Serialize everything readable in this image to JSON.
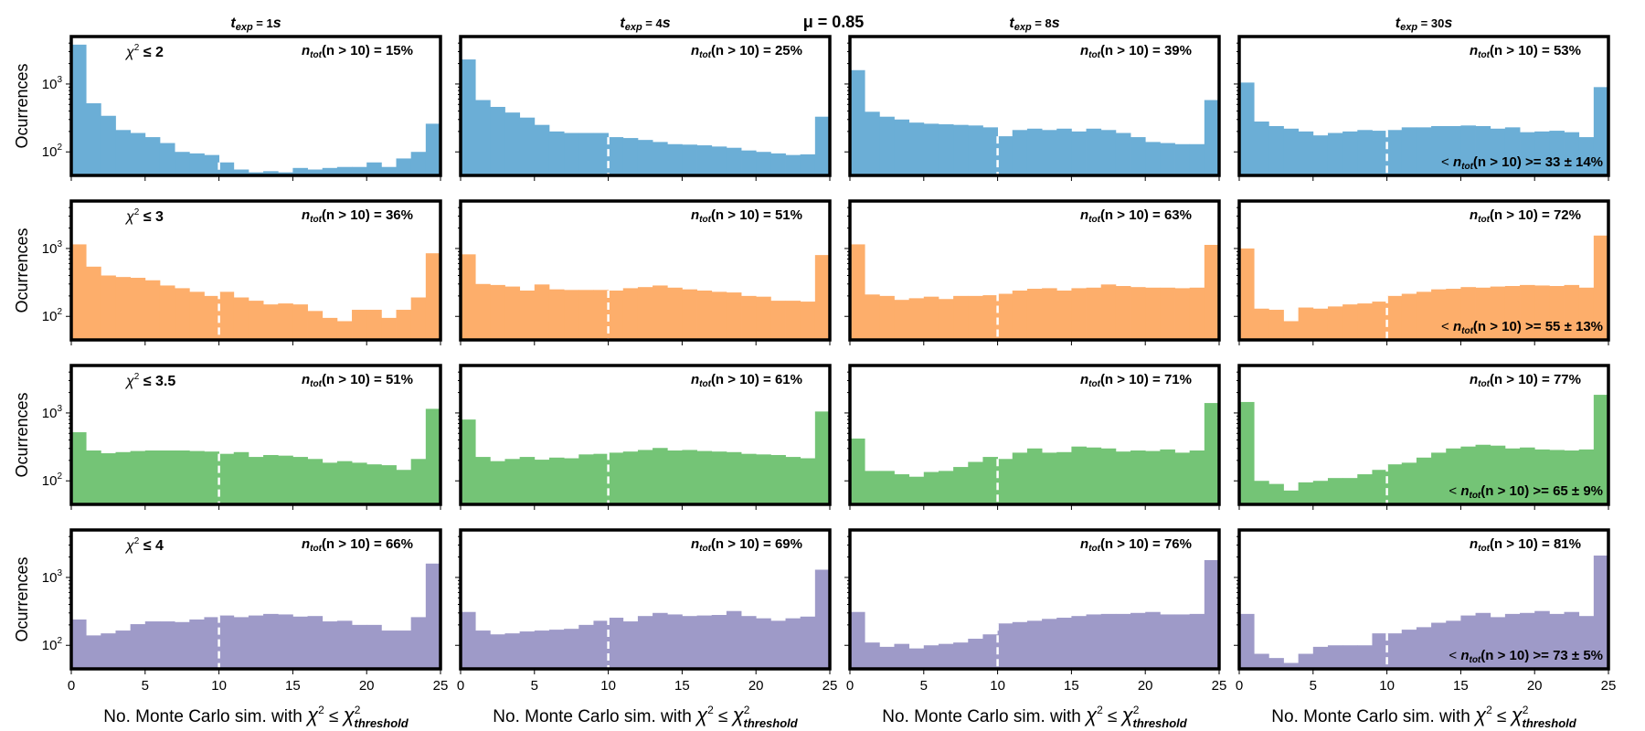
{
  "figure_title": "μ = 0.85",
  "colors": {
    "blue": "#6baed6",
    "orange": "#fdae6b",
    "green": "#74c476",
    "purple": "#9e9ac8"
  },
  "chart_data": {
    "type": "bar",
    "description": "4x4 grid of log-scale histograms",
    "xlabel": "No. Monte Carlo sim. with χ² ≤ χ²threshold",
    "xlabel_parts": {
      "main": "No. Monte Carlo sim.  with ",
      "chi": "χ",
      "sup": "2",
      "le": " ≤ ",
      "sub": "threshold"
    },
    "ylabel": "Ocurrences",
    "xlim": [
      0,
      25
    ],
    "ylim": [
      45,
      5000
    ],
    "yscale": "log",
    "xticks": [
      "0",
      "5",
      "10",
      "15",
      "20",
      "25"
    ],
    "yticks": [
      {
        "base": "10",
        "exp": "2",
        "value": 100
      },
      {
        "base": "10",
        "exp": "3",
        "value": 1000
      }
    ],
    "threshold_line_x": 10,
    "columns": [
      {
        "label": "texp = 1s",
        "base": "t",
        "sub": "exp",
        "rest": " = 1",
        "unit": "s"
      },
      {
        "label": "texp = 4s",
        "base": "t",
        "sub": "exp",
        "rest": " = 4",
        "unit": "s"
      },
      {
        "label": "texp = 8s",
        "base": "t",
        "sub": "exp",
        "rest": " = 8",
        "unit": "s"
      },
      {
        "label": "texp = 30s",
        "base": "t",
        "sub": "exp",
        "rest": " = 30",
        "unit": "s"
      }
    ],
    "rows": [
      {
        "chi_label": "χ² ≤ 2",
        "chi_value": "2",
        "color": "#6baed6",
        "panels": [
          {
            "ntot": "15%",
            "values": [
              3800,
              520,
              340,
              210,
              190,
              165,
              135,
              100,
              95,
              90,
              70,
              55,
              50,
              52,
              50,
              58,
              55,
              58,
              60,
              60,
              70,
              60,
              80,
              100,
              260
            ]
          },
          {
            "ntot": "25%",
            "values": [
              2300,
              580,
              460,
              380,
              320,
              250,
              200,
              190,
              190,
              190,
              165,
              160,
              150,
              140,
              130,
              128,
              125,
              120,
              115,
              105,
              100,
              95,
              90,
              92,
              330
            ]
          },
          {
            "ntot": "39%",
            "values": [
              1600,
              390,
              330,
              300,
              270,
              260,
              255,
              250,
              245,
              230,
              170,
              210,
              220,
              210,
              220,
              200,
              220,
              210,
              190,
              165,
              140,
              135,
              130,
              130,
              580
            ]
          },
          {
            "ntot": "53%",
            "values": [
              1050,
              280,
              240,
              220,
              200,
              175,
              190,
              200,
              210,
              205,
              210,
              230,
              230,
              240,
              240,
              245,
              240,
              220,
              230,
              195,
              200,
              205,
              195,
              165,
              900
            ],
            "mean": "33 ± 14%"
          }
        ]
      },
      {
        "chi_label": "χ² ≤ 3",
        "chi_value": "3",
        "color": "#fdae6b",
        "panels": [
          {
            "ntot": "36%",
            "values": [
              1150,
              540,
              400,
              380,
              370,
              340,
              285,
              260,
              230,
              200,
              230,
              190,
              170,
              150,
              155,
              150,
              120,
              95,
              85,
              125,
              125,
              95,
              125,
              190,
              850
            ]
          },
          {
            "ntot": "51%",
            "values": [
              820,
              300,
              290,
              275,
              240,
              295,
              250,
              245,
              245,
              245,
              240,
              260,
              270,
              285,
              265,
              250,
              240,
              230,
              225,
              200,
              195,
              170,
              170,
              165,
              800
            ]
          },
          {
            "ntot": "63%",
            "values": [
              1150,
              210,
              200,
              175,
              185,
              195,
              180,
              200,
              200,
              205,
              215,
              240,
              255,
              260,
              240,
              260,
              265,
              295,
              280,
              270,
              265,
              265,
              260,
              265,
              1130
            ]
          },
          {
            "ntot": "72%",
            "values": [
              1000,
              130,
              125,
              85,
              135,
              130,
              140,
              150,
              155,
              165,
              200,
              215,
              230,
              250,
              255,
              270,
              265,
              275,
              280,
              290,
              285,
              280,
              290,
              265,
              1550
            ],
            "mean": "55 ± 13%"
          }
        ]
      },
      {
        "chi_label": "χ² ≤ 3.5",
        "chi_value": "3.5",
        "color": "#74c476",
        "panels": [
          {
            "ntot": "51%",
            "values": [
              520,
              280,
              255,
              265,
              275,
              280,
              280,
              280,
              275,
              270,
              250,
              265,
              225,
              240,
              235,
              225,
              210,
              185,
              195,
              185,
              175,
              170,
              145,
              210,
              1150
            ]
          },
          {
            "ntot": "61%",
            "values": [
              800,
              225,
              195,
              210,
              225,
              205,
              220,
              215,
              245,
              250,
              260,
              270,
              285,
              305,
              280,
              285,
              275,
              270,
              265,
              250,
              245,
              240,
              225,
              215,
              1050
            ]
          },
          {
            "ntot": "71%",
            "values": [
              420,
              140,
              140,
              125,
              115,
              135,
              140,
              160,
              190,
              225,
              210,
              260,
              300,
              260,
              265,
              320,
              310,
              300,
              270,
              280,
              275,
              290,
              260,
              280,
              1400
            ]
          },
          {
            "ntot": "77%",
            "values": [
              1450,
              100,
              90,
              72,
              95,
              100,
              110,
              110,
              125,
              145,
              175,
              185,
              220,
              260,
              300,
              320,
              340,
              330,
              300,
              310,
              290,
              285,
              280,
              290,
              1850
            ],
            "mean": "65 ± 9%"
          }
        ]
      },
      {
        "chi_label": "χ² ≤ 4",
        "chi_value": "4",
        "color": "#9e9ac8",
        "panels": [
          {
            "ntot": "66%",
            "values": [
              240,
              140,
              150,
              165,
              205,
              225,
              225,
              220,
              240,
              260,
              275,
              260,
              275,
              290,
              285,
              265,
              270,
              225,
              230,
              200,
              200,
              165,
              165,
              260,
              1600
            ]
          },
          {
            "ntot": "69%",
            "values": [
              310,
              165,
              145,
              150,
              160,
              165,
              170,
              175,
              200,
              230,
              255,
              225,
              270,
              300,
              285,
              270,
              275,
              280,
              320,
              270,
              250,
              230,
              250,
              265,
              1300
            ]
          },
          {
            "ntot": "76%",
            "values": [
              310,
              110,
              95,
              105,
              90,
              100,
              105,
              110,
              125,
              145,
              210,
              220,
              230,
              245,
              255,
              270,
              285,
              290,
              290,
              300,
              310,
              285,
              285,
              290,
              1800
            ]
          },
          {
            "ntot": "81%",
            "values": [
              290,
              75,
              65,
              55,
              75,
              95,
              100,
              100,
              100,
              150,
              150,
              170,
              185,
              215,
              230,
              275,
              300,
              260,
              290,
              300,
              320,
              290,
              310,
              270,
              2100
            ],
            "mean": "73 ± 5%"
          }
        ]
      }
    ],
    "annotation_template": {
      "base": "n",
      "sub": "tot",
      "cond": "(n > 10) = "
    },
    "mean_template": {
      "open": "< ",
      "base": "n",
      "sub": "tot",
      "cond": "(n > 10) >= "
    }
  }
}
